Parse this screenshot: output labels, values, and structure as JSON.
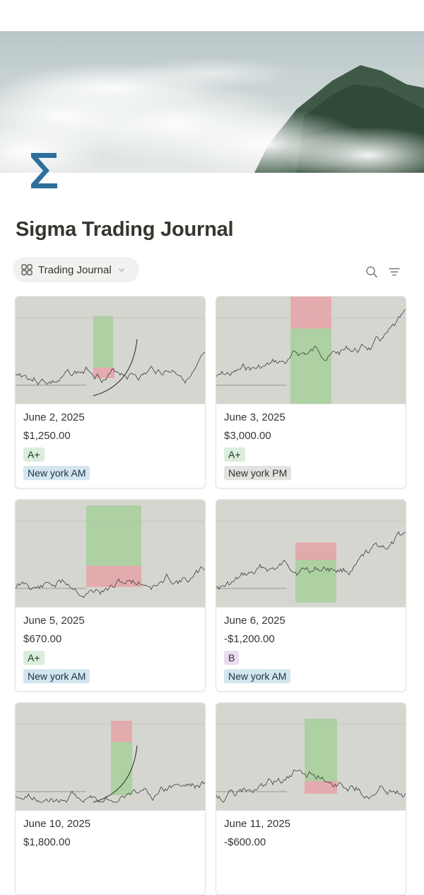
{
  "page": {
    "title": "Sigma Trading Journal",
    "icon": "sigma-icon",
    "cover": "cloud-mountain-cover"
  },
  "view": {
    "label": "Trading Journal",
    "icon": "gallery-icon",
    "dropdown_icon": "chevron-down-icon"
  },
  "toolbar": {
    "search_icon": "search-icon",
    "filter_icon": "filter-icon"
  },
  "colors": {
    "accent": "#2e6f9e",
    "tag_green_bg": "#dbeddb",
    "tag_green_fg": "#1c3829",
    "tag_blue_bg": "#d3e5ef",
    "tag_blue_fg": "#183347",
    "tag_gray_bg": "#e3e2e0",
    "tag_gray_fg": "#32302c",
    "tag_purple_bg": "#e8deee",
    "tag_purple_fg": "#412454"
  },
  "cards": [
    {
      "date": "June 2, 2025",
      "pnl": "$1,250.00",
      "grade": "A+",
      "grade_color": "green",
      "session": "New york AM",
      "session_color": "blue"
    },
    {
      "date": "June 3, 2025",
      "pnl": "$3,000.00",
      "grade": "A+",
      "grade_color": "green",
      "session": "New york PM",
      "session_color": "gray"
    },
    {
      "date": "June 5, 2025",
      "pnl": "$670.00",
      "grade": "A+",
      "grade_color": "green",
      "session": "New york AM",
      "session_color": "blue"
    },
    {
      "date": "June 6, 2025",
      "pnl": "-$1,200.00",
      "grade": "B",
      "grade_color": "purple",
      "session": "New york AM",
      "session_color": "blue"
    },
    {
      "date": "June 10, 2025",
      "pnl": "$1,800.00",
      "grade": "",
      "grade_color": "green",
      "session": "",
      "session_color": "blue"
    },
    {
      "date": "June 11, 2025",
      "pnl": "-$600.00",
      "grade": "",
      "grade_color": "green",
      "session": "",
      "session_color": "blue"
    }
  ]
}
